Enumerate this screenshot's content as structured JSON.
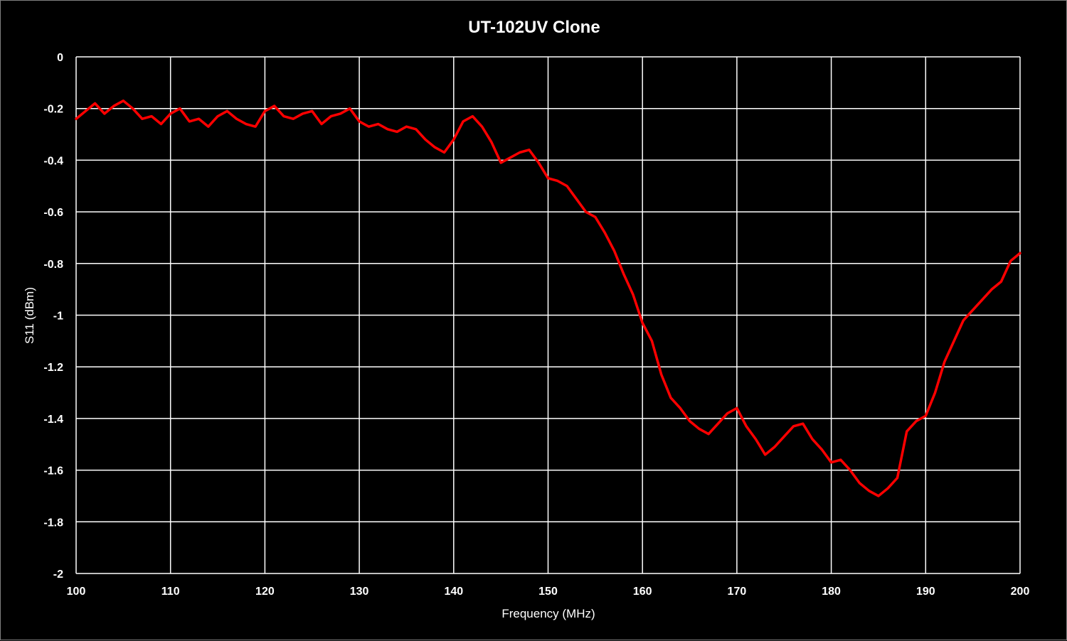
{
  "colors": {
    "background": "#000000",
    "plot_background": "#000000",
    "grid": "#ffffff",
    "series": "#ff0000",
    "text": "#ffffff"
  },
  "chart_data": {
    "type": "line",
    "title": "UT-102UV Clone",
    "xlabel": "Frequency (MHz)",
    "ylabel": "S11 (dBm)",
    "xlim": [
      100,
      200
    ],
    "ylim": [
      -2,
      0
    ],
    "x_ticks": [
      100,
      110,
      120,
      130,
      140,
      150,
      160,
      170,
      180,
      190,
      200
    ],
    "x_tick_labels": [
      "100",
      "110",
      "120",
      "130",
      "140",
      "150",
      "160",
      "170",
      "180",
      "190",
      "200"
    ],
    "y_ticks": [
      0,
      -0.2,
      -0.4,
      -0.6,
      -0.8,
      -1,
      -1.2,
      -1.4,
      -1.6,
      -1.8,
      -2
    ],
    "y_tick_labels": [
      "0",
      "-0.2",
      "-0.4",
      "-0.6",
      "-0.8",
      "-1",
      "-1.2",
      "-1.4",
      "-1.6",
      "-1.8",
      "-2"
    ],
    "grid": true,
    "legend": "none",
    "series": [
      {
        "x": [
          100,
          101,
          102,
          103,
          104,
          105,
          106,
          107,
          108,
          109,
          110,
          111,
          112,
          113,
          114,
          115,
          116,
          117,
          118,
          119,
          120,
          121,
          122,
          123,
          124,
          125,
          126,
          127,
          128,
          129,
          130,
          131,
          132,
          133,
          134,
          135,
          136,
          137,
          138,
          139,
          140,
          141,
          142,
          143,
          144,
          145,
          146,
          147,
          148,
          149,
          150,
          151,
          152,
          153,
          154,
          155,
          156,
          157,
          158,
          159,
          160,
          161,
          162,
          163,
          164,
          165,
          166,
          167,
          168,
          169,
          170,
          171,
          172,
          173,
          174,
          175,
          176,
          177,
          178,
          179,
          180,
          181,
          182,
          183,
          184,
          185,
          186,
          187,
          188,
          189,
          190,
          191,
          192,
          193,
          194,
          195,
          196,
          197,
          198,
          199,
          200
        ],
        "y": [
          -0.24,
          -0.21,
          -0.18,
          -0.22,
          -0.19,
          -0.17,
          -0.2,
          -0.24,
          -0.23,
          -0.26,
          -0.22,
          -0.2,
          -0.25,
          -0.24,
          -0.27,
          -0.23,
          -0.21,
          -0.24,
          -0.26,
          -0.27,
          -0.21,
          -0.19,
          -0.23,
          -0.24,
          -0.22,
          -0.21,
          -0.26,
          -0.23,
          -0.22,
          -0.2,
          -0.25,
          -0.27,
          -0.26,
          -0.28,
          -0.29,
          -0.27,
          -0.28,
          -0.32,
          -0.35,
          -0.37,
          -0.32,
          -0.25,
          -0.23,
          -0.27,
          -0.33,
          -0.41,
          -0.39,
          -0.37,
          -0.36,
          -0.41,
          -0.47,
          -0.48,
          -0.5,
          -0.55,
          -0.6,
          -0.62,
          -0.68,
          -0.75,
          -0.84,
          -0.92,
          -1.03,
          -1.1,
          -1.23,
          -1.32,
          -1.36,
          -1.41,
          -1.44,
          -1.46,
          -1.42,
          -1.38,
          -1.36,
          -1.43,
          -1.48,
          -1.54,
          -1.51,
          -1.47,
          -1.43,
          -1.42,
          -1.48,
          -1.52,
          -1.57,
          -1.56,
          -1.6,
          -1.65,
          -1.68,
          -1.7,
          -1.67,
          -1.63,
          -1.45,
          -1.41,
          -1.39,
          -1.3,
          -1.18,
          -1.1,
          -1.02,
          -0.98,
          -0.94,
          -0.9,
          -0.87,
          -0.79,
          -0.76
        ]
      }
    ]
  }
}
